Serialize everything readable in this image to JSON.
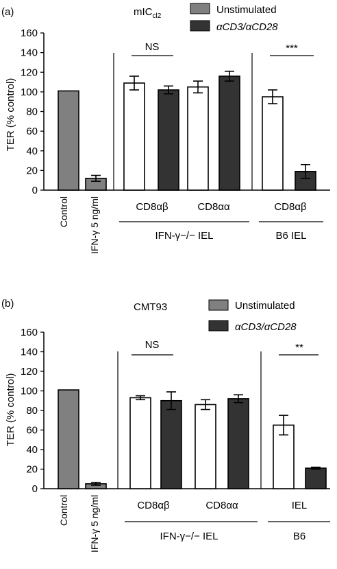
{
  "colors": {
    "control": "#808080",
    "stimulated": "#333333",
    "unstimulated": "#ffffff",
    "axis": "#000000"
  },
  "chart_data": [
    {
      "type": "bar",
      "panel_label": "(a)",
      "title_main": "mIC",
      "title_sub": "cl2",
      "ylabel": "TER (% control)",
      "ylim": [
        0,
        160
      ],
      "yticks": [
        0,
        20,
        40,
        60,
        80,
        100,
        120,
        140,
        160
      ],
      "legend": [
        {
          "label": "Unstimulated",
          "color": "#808080"
        },
        {
          "label": "αCD3/αCD28",
          "color": "#333333"
        }
      ],
      "legend_position": "top-right",
      "x_labels": [
        "Control",
        "IFN-γ 5 ng/ml"
      ],
      "group_labels": [
        "CD8αβ",
        "CD8αα",
        "CD8αβ"
      ],
      "bracket_labels": [
        "IFN-γ−/− IEL",
        "B6 IEL"
      ],
      "significance": [
        {
          "label": "NS",
          "between": [
            "IFN-γ−/− CD8αβ unstimulated",
            "IFN-γ−/− CD8αβ αCD3/αCD28"
          ]
        },
        {
          "label": "***",
          "between": [
            "B6 CD8αβ unstimulated",
            "B6 CD8αβ αCD3/αCD28"
          ]
        }
      ],
      "bars": [
        {
          "category": "Control",
          "value": 101,
          "error": 0,
          "fill": "control"
        },
        {
          "category": "IFN-γ 5 ng/ml",
          "value": 12,
          "error": 3,
          "fill": "control"
        },
        {
          "category": "IFN-γ−/− IEL CD8αβ Unstimulated",
          "value": 109,
          "error": 7,
          "fill": "unstimulated"
        },
        {
          "category": "IFN-γ−/− IEL CD8αβ αCD3/αCD28",
          "value": 102,
          "error": 4,
          "fill": "stimulated"
        },
        {
          "category": "IFN-γ−/− IEL CD8αα Unstimulated",
          "value": 105,
          "error": 6,
          "fill": "unstimulated"
        },
        {
          "category": "IFN-γ−/− IEL CD8αα αCD3/αCD28",
          "value": 116,
          "error": 5,
          "fill": "stimulated"
        },
        {
          "category": "B6 IEL CD8αβ Unstimulated",
          "value": 95,
          "error": 7,
          "fill": "unstimulated"
        },
        {
          "category": "B6 IEL CD8αβ αCD3/αCD28",
          "value": 19,
          "error": 7,
          "fill": "stimulated"
        }
      ]
    },
    {
      "type": "bar",
      "panel_label": "(b)",
      "title_main": "CMT93",
      "title_sub": "",
      "ylabel": "TER (% control)",
      "ylim": [
        0,
        160
      ],
      "yticks": [
        0,
        20,
        40,
        60,
        80,
        100,
        120,
        140,
        160
      ],
      "legend": [
        {
          "label": "Unstimulated",
          "color": "#808080"
        },
        {
          "label": "αCD3/αCD28",
          "color": "#333333"
        }
      ],
      "legend_position": "top-right",
      "x_labels": [
        "Control",
        "IFN-γ 5 ng/ml"
      ],
      "group_labels": [
        "CD8αβ",
        "CD8αα",
        "IEL"
      ],
      "bracket_labels": [
        "IFN-γ−/− IEL",
        "B6"
      ],
      "significance": [
        {
          "label": "NS",
          "between": [
            "IFN-γ−/− CD8αβ unstimulated",
            "IFN-γ−/− CD8αβ αCD3/αCD28"
          ]
        },
        {
          "label": "**",
          "between": [
            "B6 IEL unstimulated",
            "B6 IEL αCD3/αCD28"
          ]
        }
      ],
      "bars": [
        {
          "category": "Control",
          "value": 101,
          "error": 0,
          "fill": "control"
        },
        {
          "category": "IFN-γ 5 ng/ml",
          "value": 5,
          "error": 1.5,
          "fill": "control"
        },
        {
          "category": "IFN-γ−/− IEL CD8αβ Unstimulated",
          "value": 93,
          "error": 2,
          "fill": "unstimulated"
        },
        {
          "category": "IFN-γ−/− IEL CD8αβ αCD3/αCD28",
          "value": 90,
          "error": 9,
          "fill": "stimulated"
        },
        {
          "category": "IFN-γ−/− IEL CD8αα Unstimulated",
          "value": 86,
          "error": 5,
          "fill": "unstimulated"
        },
        {
          "category": "IFN-γ−/− IEL CD8αα αCD3/αCD28",
          "value": 92,
          "error": 4,
          "fill": "stimulated"
        },
        {
          "category": "B6 IEL Unstimulated",
          "value": 65,
          "error": 10,
          "fill": "unstimulated"
        },
        {
          "category": "B6 IEL αCD3/αCD28",
          "value": 21,
          "error": 1,
          "fill": "stimulated"
        }
      ]
    }
  ]
}
